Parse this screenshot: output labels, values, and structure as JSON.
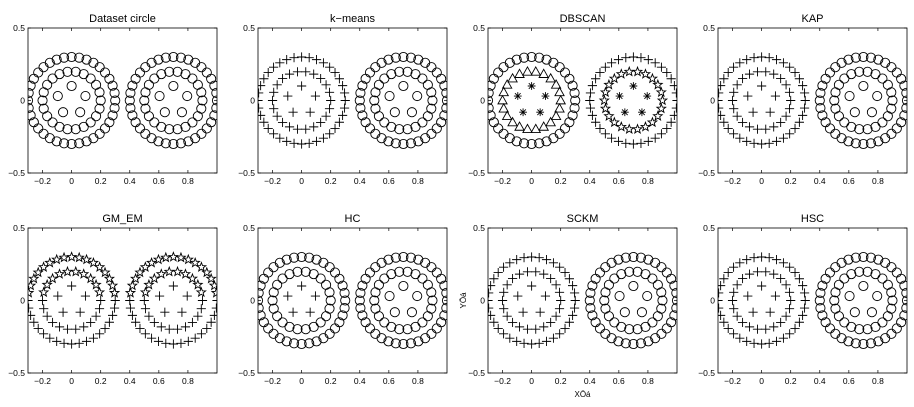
{
  "figure": {
    "xlabel": "XÖá",
    "ylabel": "YÖá",
    "xlabel_panel": 6,
    "ylabel_panel": 6
  },
  "chart_data": [
    {
      "type": "scatter",
      "title": "Dataset circle",
      "xlim": [
        -0.3,
        1.0
      ],
      "ylim": [
        -0.5,
        0.5
      ],
      "xticks": [
        "−0.2",
        "0",
        "0.2",
        "0.4",
        "0.6",
        "0.8"
      ],
      "xtick_values": [
        -0.2,
        0,
        0.2,
        0.4,
        0.6,
        0.8
      ],
      "yticks": [
        "0.5",
        "0",
        "−0.5"
      ],
      "ytick_values": [
        0.5,
        0,
        -0.5
      ],
      "markers": {
        "left_outer": "circle",
        "left_middle": "circle",
        "left_inner": "circle",
        "right_outer": "circle",
        "right_middle": "circle",
        "right_inner": "circle"
      }
    },
    {
      "type": "scatter",
      "title": "k−means",
      "xlim": [
        -0.3,
        1.0
      ],
      "ylim": [
        -0.5,
        0.5
      ],
      "xticks": [
        "−0.2",
        "0",
        "0.2",
        "0.4",
        "0.6",
        "0.8"
      ],
      "xtick_values": [
        -0.2,
        0,
        0.2,
        0.4,
        0.6,
        0.8
      ],
      "yticks": [
        "0.5",
        "0",
        "−0.5"
      ],
      "ytick_values": [
        0.5,
        0,
        -0.5
      ],
      "markers": {
        "left_outer": "plus",
        "left_middle": "plus",
        "left_inner": "plus",
        "right_outer": "circle",
        "right_middle": "circle",
        "right_inner": "circle"
      }
    },
    {
      "type": "scatter",
      "title": "DBSCAN",
      "xlim": [
        -0.3,
        1.0
      ],
      "ylim": [
        -0.5,
        0.5
      ],
      "xticks": [
        "−0.2",
        "0",
        "0.2",
        "0.4",
        "0.6",
        "0.8"
      ],
      "xtick_values": [
        -0.2,
        0,
        0.2,
        0.4,
        0.6,
        0.8
      ],
      "yticks": [
        "0.5",
        "0",
        "−0.5"
      ],
      "ytick_values": [
        0.5,
        0,
        -0.5
      ],
      "markers": {
        "left_outer": "circle",
        "left_middle": "triangle",
        "left_inner": "asterisk",
        "right_outer": "plus",
        "right_middle": "star",
        "right_inner": "asterisk"
      }
    },
    {
      "type": "scatter",
      "title": "KAP",
      "xlim": [
        -0.3,
        1.0
      ],
      "ylim": [
        -0.5,
        0.5
      ],
      "xticks": [
        "−0.2",
        "0",
        "0.2",
        "0.4",
        "0.6",
        "0.8"
      ],
      "xtick_values": [
        -0.2,
        0,
        0.2,
        0.4,
        0.6,
        0.8
      ],
      "yticks": [
        "0.5",
        "0",
        "−0.5"
      ],
      "ytick_values": [
        0.5,
        0,
        -0.5
      ],
      "markers": {
        "left_outer": "plus",
        "left_middle": "plus",
        "left_inner": "plus",
        "right_outer": "circle",
        "right_middle": "circle",
        "right_inner": "circle"
      }
    },
    {
      "type": "scatter",
      "title": "GM_EM",
      "xlim": [
        -0.3,
        1.0
      ],
      "ylim": [
        -0.5,
        0.5
      ],
      "xticks": [
        "−0.2",
        "0",
        "0.2",
        "0.4",
        "0.6",
        "0.8"
      ],
      "xtick_values": [
        -0.2,
        0,
        0.2,
        0.4,
        0.6,
        0.8
      ],
      "yticks": [
        "0.5",
        "0",
        "−0.5"
      ],
      "ytick_values": [
        0.5,
        0,
        -0.5
      ],
      "markers": {
        "left_outer": "split",
        "left_middle": "split",
        "left_inner": "plus",
        "right_outer": "split",
        "right_middle": "split",
        "right_inner": "plus"
      }
    },
    {
      "type": "scatter",
      "title": "HC",
      "xlim": [
        -0.3,
        1.0
      ],
      "ylim": [
        -0.5,
        0.5
      ],
      "xticks": [
        "−0.2",
        "0",
        "0.2",
        "0.4",
        "0.6",
        "0.8"
      ],
      "xtick_values": [
        -0.2,
        0,
        0.2,
        0.4,
        0.6,
        0.8
      ],
      "yticks": [
        "0.5",
        "0",
        "−0.5"
      ],
      "ytick_values": [
        0.5,
        0,
        -0.5
      ],
      "markers": {
        "left_outer": "circle",
        "left_middle": "circle",
        "left_inner": "plus",
        "right_outer": "circle",
        "right_middle": "circle",
        "right_inner": "circle"
      }
    },
    {
      "type": "scatter",
      "title": "SCKM",
      "xlim": [
        -0.3,
        1.0
      ],
      "ylim": [
        -0.5,
        0.5
      ],
      "xticks": [
        "−0.2",
        "0",
        "0.2",
        "0.4",
        "0.6",
        "0.8"
      ],
      "xtick_values": [
        -0.2,
        0,
        0.2,
        0.4,
        0.6,
        0.8
      ],
      "yticks": [
        "0.5",
        "0",
        "−0.5"
      ],
      "ytick_values": [
        0.5,
        0,
        -0.5
      ],
      "markers": {
        "left_outer": "plus",
        "left_middle": "plus",
        "left_inner": "plus",
        "right_outer": "circle",
        "right_middle": "circle",
        "right_inner": "circle"
      }
    },
    {
      "type": "scatter",
      "title": "HSC",
      "xlim": [
        -0.3,
        1.0
      ],
      "ylim": [
        -0.5,
        0.5
      ],
      "xticks": [
        "−0.2",
        "0",
        "0.2",
        "0.4",
        "0.6",
        "0.8"
      ],
      "xtick_values": [
        -0.2,
        0,
        0.2,
        0.4,
        0.6,
        0.8
      ],
      "yticks": [
        "0.5",
        "0",
        "−0.5"
      ],
      "ytick_values": [
        0.5,
        0,
        -0.5
      ],
      "markers": {
        "left_outer": "plus",
        "left_middle": "plus",
        "left_inner": "plus",
        "right_outer": "circle",
        "right_middle": "circle",
        "right_inner": "circle"
      }
    }
  ],
  "dataset": {
    "centers": [
      [
        0,
        0
      ],
      [
        0.7,
        0
      ]
    ],
    "rings": {
      "outer": {
        "radius": 0.3,
        "count": 36
      },
      "middle": {
        "radius": 0.2,
        "count": 22
      },
      "inner": {
        "radius": 0.1,
        "count": 5
      }
    }
  }
}
